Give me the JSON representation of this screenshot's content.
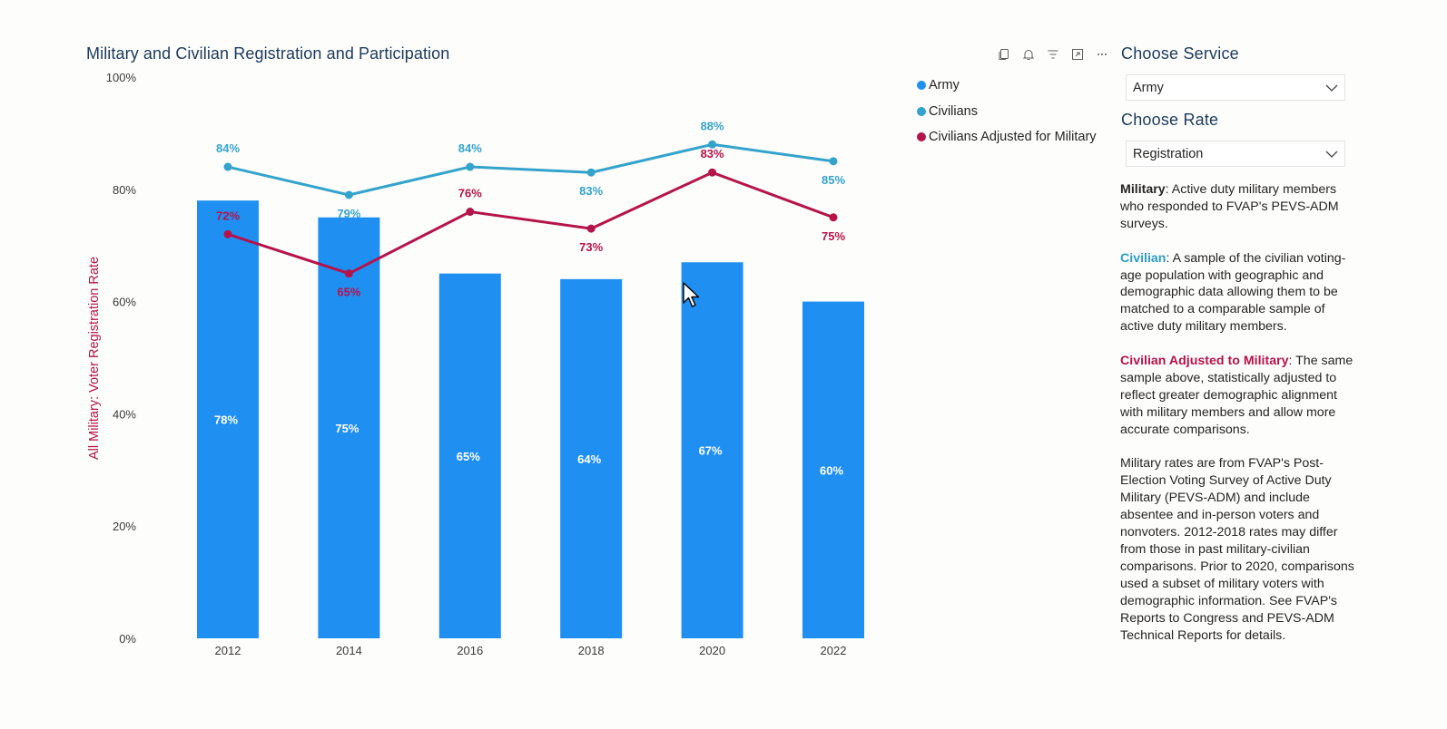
{
  "colors": {
    "army": "#1f8ff2",
    "civilians": "#34a3cc",
    "adjusted": "#b5134b",
    "title": "#1b3a5c"
  },
  "toolbar": {
    "icons": [
      "copy-icon",
      "bell-icon",
      "filter-icon",
      "focus-mode-icon",
      "more-options-icon"
    ]
  },
  "service_slicer": {
    "title": "Choose Service",
    "value": "Army"
  },
  "rate_slicer": {
    "title": "Choose Rate",
    "value": "Registration"
  },
  "notes": {
    "military_term": "Military",
    "military_text": ": Active duty military members who responded to FVAP's PEVS-ADM surveys.",
    "civilian_term": "Civilian",
    "civilian_text": ": A sample of the civilian voting-age population with geographic and demographic data allowing them to be matched to a comparable sample of active duty military members.",
    "adjusted_term": "Civilian Adjusted to Military",
    "adjusted_text": ": The same sample above, statistically adjusted to reflect greater demographic alignment with military members and allow more accurate comparisons.",
    "rates_text": "Military rates are from FVAP's Post-Election Voting Survey of Active Duty Military (PEVS-ADM) and include absentee and in-person voters and nonvoters. 2012-2018 rates may differ from those in past military-civilian comparisons. Prior to 2020, comparisons used a subset of military voters with demographic information. See FVAP's Reports to Congress and PEVS-ADM Technical Reports for details."
  },
  "chart_data": {
    "type": "bar",
    "title": "Military and Civilian Registration and Participation",
    "ylabel": "All Military: Voter Registration Rate",
    "xlabel": "",
    "ylim": [
      0,
      100
    ],
    "y_ticks": [
      "0%",
      "20%",
      "40%",
      "60%",
      "80%",
      "100%"
    ],
    "y_tick_values": [
      0,
      20,
      40,
      60,
      80,
      100
    ],
    "categories": [
      "2012",
      "2014",
      "2016",
      "2018",
      "2020",
      "2022"
    ],
    "legend": "top-right",
    "grid": false,
    "series": [
      {
        "name": "Army",
        "kind": "bar",
        "values": [
          78,
          75,
          65,
          64,
          67,
          60
        ],
        "labels": [
          "78%",
          "75%",
          "65%",
          "64%",
          "67%",
          "60%"
        ]
      },
      {
        "name": "Civilians",
        "kind": "line",
        "values": [
          84,
          79,
          84,
          83,
          88,
          85
        ],
        "labels": [
          "84%",
          "79%",
          "84%",
          "83%",
          "88%",
          "85%"
        ]
      },
      {
        "name": "Civilians Adjusted for Military",
        "kind": "line",
        "values": [
          72,
          65,
          76,
          73,
          83,
          75
        ],
        "labels": [
          "72%",
          "65%",
          "76%",
          "73%",
          "83%",
          "75%"
        ]
      }
    ]
  }
}
